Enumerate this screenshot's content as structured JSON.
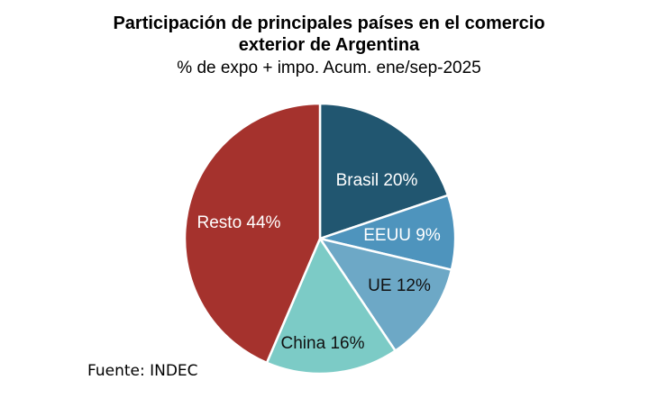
{
  "chart_data": {
    "type": "pie",
    "title": "Participación de principales países en el comercio exterior de Argentina",
    "subtitle": "% de expo + impo. Acum. ene/sep-2025",
    "source": "Fuente: INDEC",
    "slices": [
      {
        "label": "Brasil 20%",
        "name": "Brasil",
        "value": 20,
        "color": "#215670",
        "text_color": "#ffffff"
      },
      {
        "label": "EEUU 9%",
        "name": "EEUU",
        "value": 9,
        "color": "#4E94BD",
        "text_color": "#ffffff"
      },
      {
        "label": "UE 12%",
        "name": "UE",
        "value": 12,
        "color": "#6DA8C6",
        "text_color": "#111111"
      },
      {
        "label": "China 16%",
        "name": "China",
        "value": 16,
        "color": "#7CCBC6",
        "text_color": "#111111"
      },
      {
        "label": "Resto 44%",
        "name": "Resto",
        "value": 44,
        "color": "#A5322D",
        "text_color": "#ffffff"
      }
    ]
  }
}
